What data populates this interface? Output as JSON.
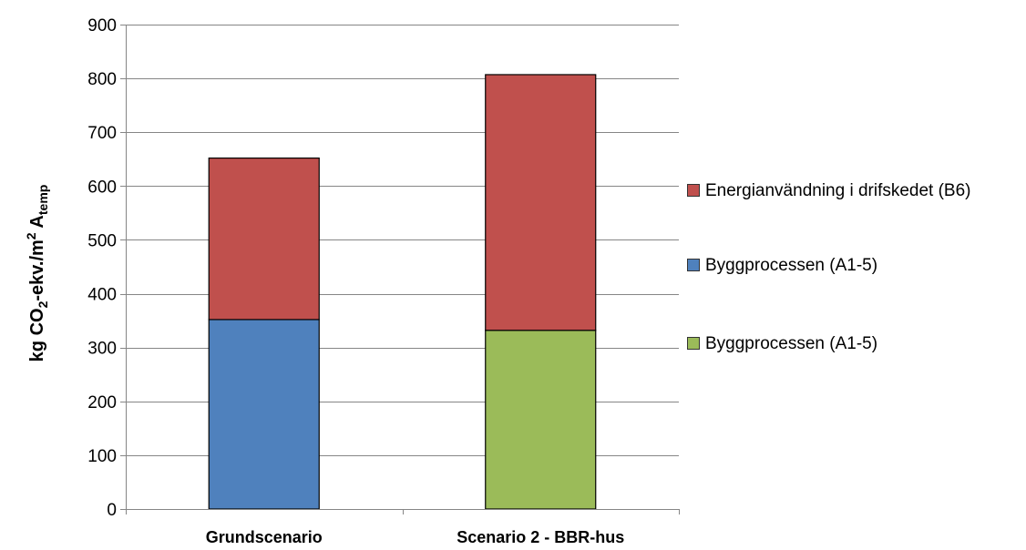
{
  "chart_data": {
    "type": "bar",
    "stacked": true,
    "categories": [
      "Grundscenario",
      "Scenario 2 - BBR-hus"
    ],
    "ylabel": {
      "main": "kg CO",
      "sub1": "2",
      "mid": "-ekv./m",
      "sup": "2",
      "tail": " A",
      "sub2": "temp"
    },
    "ylim": [
      0,
      900
    ],
    "yticks": [
      0,
      100,
      200,
      300,
      400,
      500,
      600,
      700,
      800,
      900
    ],
    "grid": true,
    "legend_position": "right",
    "segments": [
      [
        {
          "series": 1,
          "value": 352,
          "color": "#4F81BD"
        },
        {
          "series": 0,
          "value": 300,
          "color": "#C0504D"
        }
      ],
      [
        {
          "series": 2,
          "value": 332,
          "color": "#9BBB59"
        },
        {
          "series": 0,
          "value": 475,
          "color": "#C0504D"
        }
      ]
    ],
    "series": [
      {
        "name": "Energianvändning i drifskedet (B6)",
        "color": "#C0504D"
      },
      {
        "name": "Byggprocessen (A1-5)",
        "color": "#4F81BD"
      },
      {
        "name": "Byggprocessen (A1-5)",
        "color": "#9BBB59"
      }
    ]
  }
}
